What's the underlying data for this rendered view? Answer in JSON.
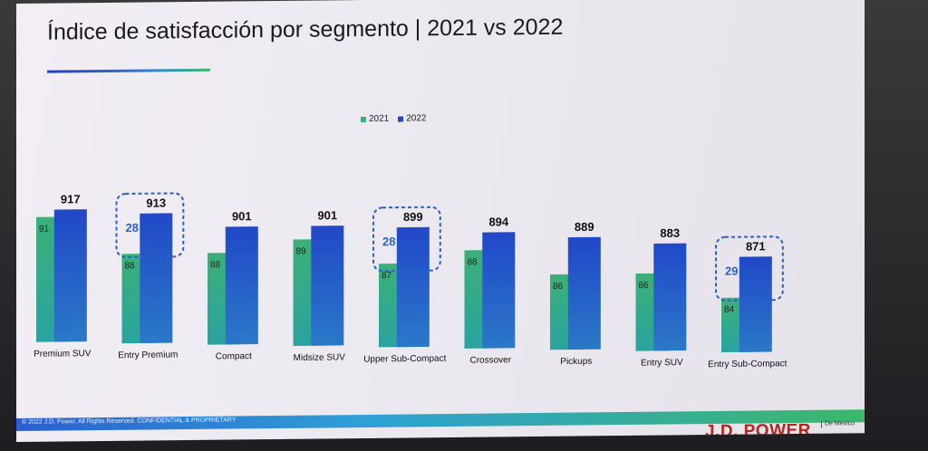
{
  "slide": {
    "title": "Índice de satisfacción por segmento  |  2021 vs 2022",
    "footer": "© 2022 J.D. Power. All Rights Reserved. CONFIDENTIAL & PROPRIETARY",
    "brand": "J.D. POWER",
    "brand_sub": "De México"
  },
  "colors": {
    "2021": "#3bb077",
    "2022": "#2148c8",
    "highlight": "#2a5fd0"
  },
  "chart_data": {
    "type": "bar",
    "title": "Índice de satisfacción por segmento | 2021 vs 2022",
    "categories": [
      "Premium SUV",
      "Entry Premium",
      "Compact",
      "Midsize SUV",
      "Upper Sub-Compact",
      "Crossover",
      "Pickups",
      "Entry SUV",
      "Entry Sub-Compact"
    ],
    "series": [
      {
        "name": "2021",
        "values": [
          91,
          88,
          88,
          89,
          87,
          88,
          86,
          86,
          84
        ]
      },
      {
        "name": "2022",
        "values": [
          917,
          913,
          901,
          901,
          899,
          894,
          889,
          883,
          871
        ]
      }
    ],
    "value_labels_2021": [
      "91",
      "88",
      "88",
      "89",
      "87",
      "88",
      "86",
      "86",
      "84"
    ],
    "value_labels_2022": [
      "917",
      "913",
      "901",
      "901",
      "899",
      "894",
      "889",
      "883",
      "871"
    ],
    "highlights": [
      {
        "category": "Entry Premium",
        "label": "28"
      },
      {
        "category": "Upper Sub-Compact",
        "label": "28"
      },
      {
        "category": "Entry Sub-Compact",
        "label": "29"
      }
    ],
    "legend": [
      "2021",
      "2022"
    ],
    "legend_position": "top-center",
    "grid": false
  }
}
